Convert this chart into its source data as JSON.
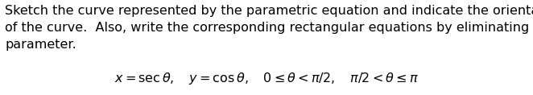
{
  "body_text_lines": [
    "Sketch the curve represented by the parametric equation and indicate the orientation",
    "of the curve.  Also, write the corresponding rectangular equations by eliminating the",
    "parameter."
  ],
  "math_line": "$x = \\sec \\theta, \\quad y = \\cos \\theta, \\quad 0 \\leq \\theta < \\pi/2, \\quad \\pi/2 < \\theta \\leq \\pi$",
  "body_fontsize": 11.5,
  "math_fontsize": 11.5,
  "text_color": "#000000",
  "background_color": "#ffffff",
  "fig_width": 6.62,
  "fig_height": 1.18,
  "dpi": 100
}
